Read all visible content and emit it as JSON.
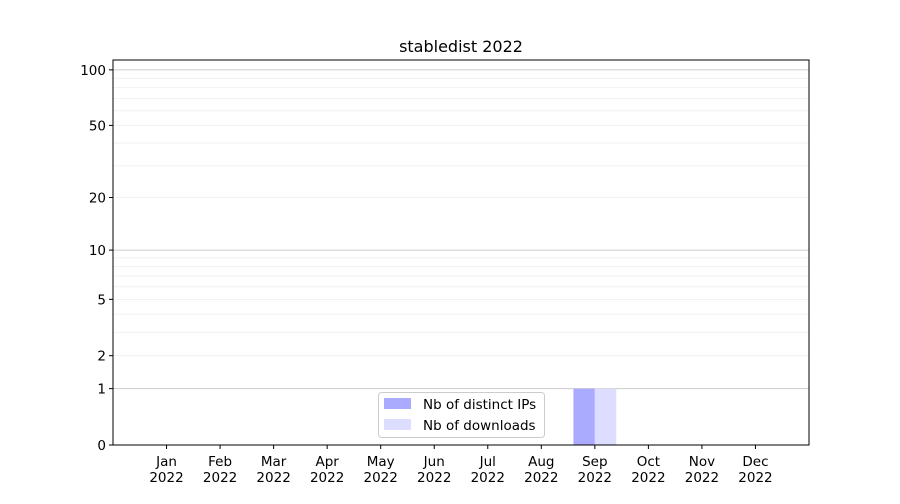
{
  "chart_data": {
    "type": "bar",
    "title": "stabledist 2022",
    "xlabel": "",
    "ylabel": "",
    "categories": [
      "Jan\n2022",
      "Feb\n2022",
      "Mar\n2022",
      "Apr\n2022",
      "May\n2022",
      "Jun\n2022",
      "Jul\n2022",
      "Aug\n2022",
      "Sep\n2022",
      "Oct\n2022",
      "Nov\n2022",
      "Dec\n2022"
    ],
    "series": [
      {
        "name": "Nb of distinct IPs",
        "color": "#aaaaff",
        "values": [
          0,
          0,
          0,
          0,
          0,
          0,
          0,
          0,
          1,
          0,
          0,
          0
        ]
      },
      {
        "name": "Nb of downloads",
        "color": "#ddddff",
        "values": [
          0,
          0,
          0,
          0,
          0,
          0,
          0,
          0,
          1,
          0,
          0,
          0
        ]
      }
    ],
    "y_scale": "log(1+y)",
    "yticks": [
      0,
      1,
      2,
      5,
      10,
      20,
      50,
      100
    ],
    "ytick_labels": [
      "0",
      "1",
      "2",
      "5",
      "10",
      "20",
      "50",
      "100"
    ],
    "ylim": [
      0,
      113
    ],
    "grid": true,
    "legend_placement": "lower center"
  }
}
